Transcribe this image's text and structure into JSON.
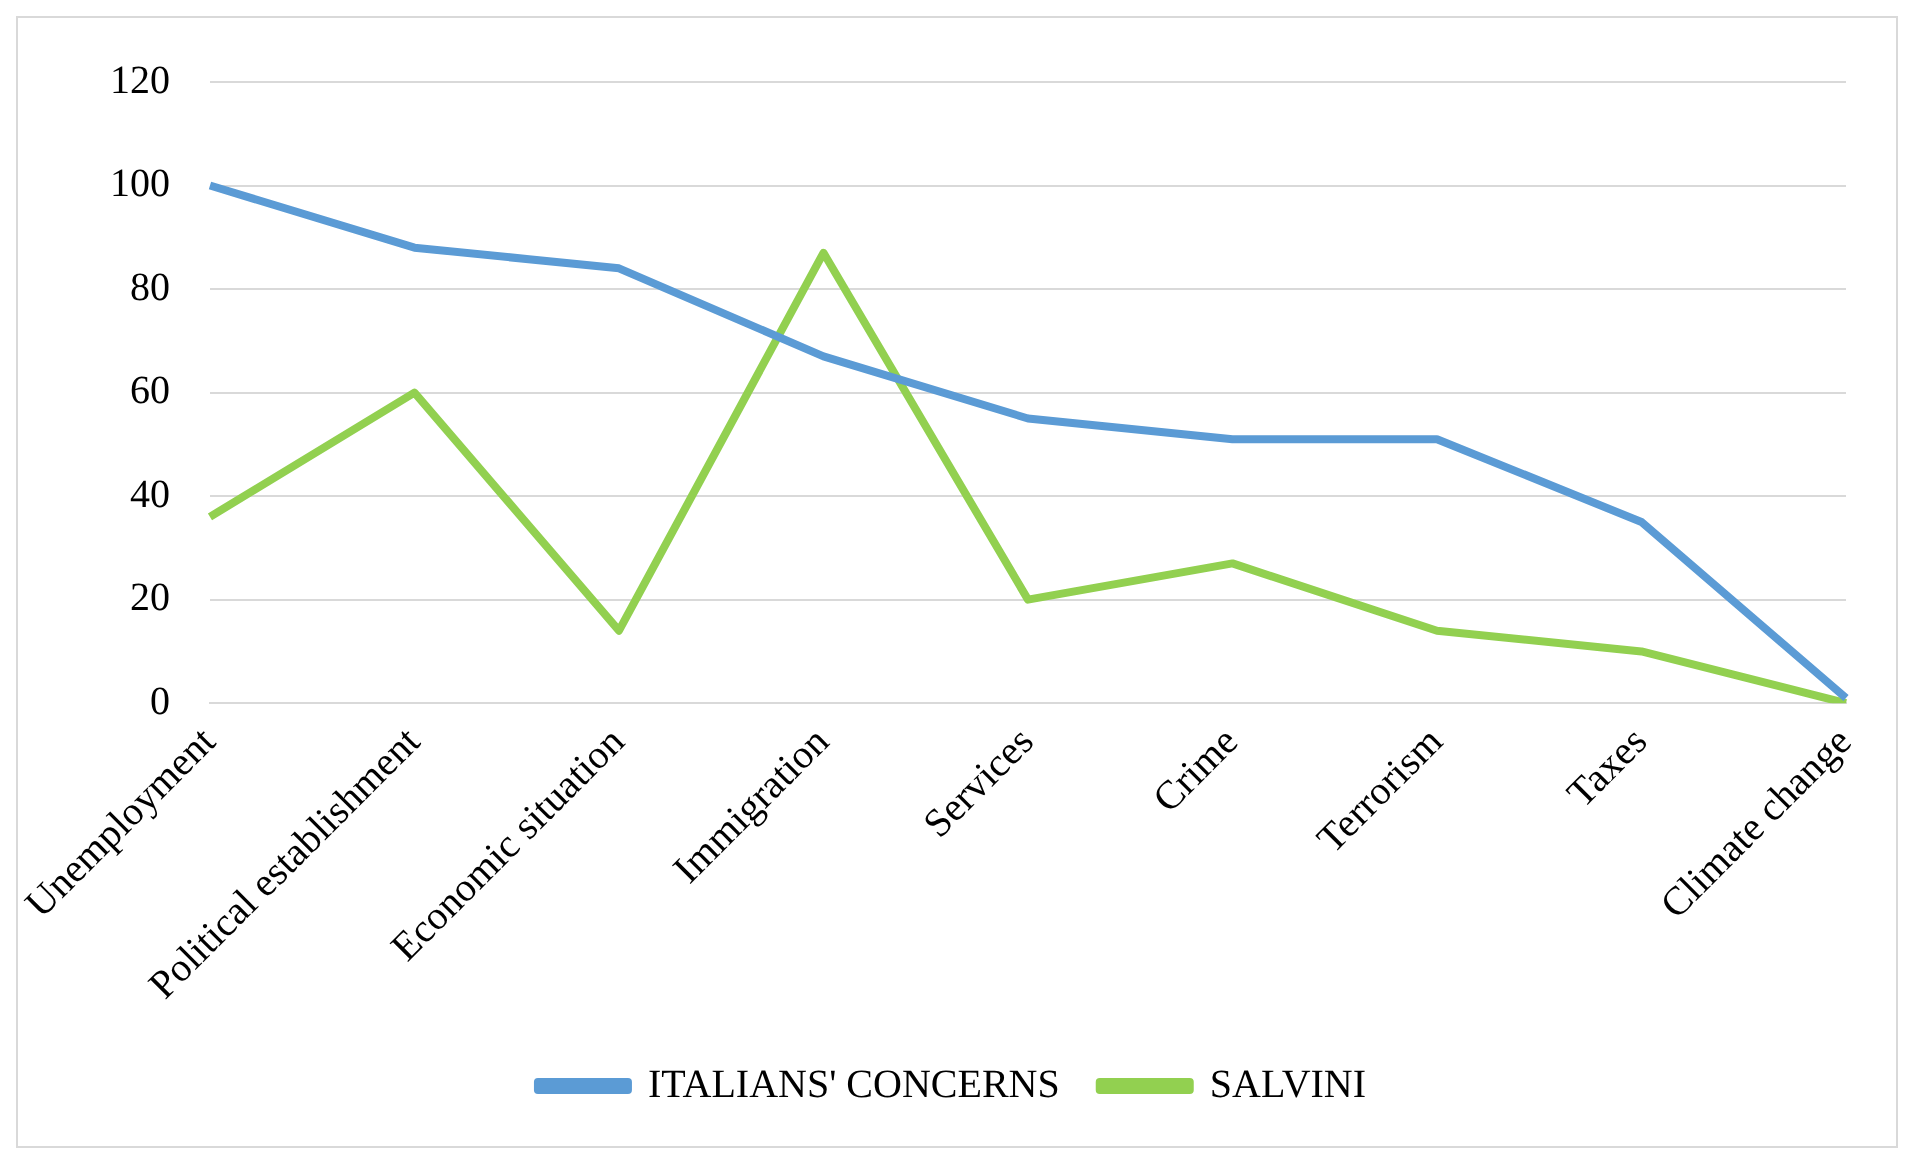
{
  "chart_data": {
    "type": "line",
    "categories": [
      "Unemployment",
      "Political establishment",
      "Economic situation",
      "Immigration",
      "Services",
      "Crime",
      "Terrorism",
      "Taxes",
      "Climate change"
    ],
    "series": [
      {
        "name": "ITALIANS' CONCERNS",
        "color": "#5b9bd5",
        "values": [
          100,
          88,
          84,
          67,
          55,
          51,
          51,
          35,
          1
        ]
      },
      {
        "name": "SALVINI",
        "color": "#92d050",
        "values": [
          36,
          60,
          14,
          87,
          20,
          27,
          14,
          10,
          0
        ]
      }
    ],
    "ylim": [
      0,
      120
    ],
    "yticks": [
      0,
      20,
      40,
      60,
      80,
      100,
      120
    ],
    "grid": "y",
    "legend": "bottom",
    "marker": "none",
    "line_style": "solid"
  }
}
